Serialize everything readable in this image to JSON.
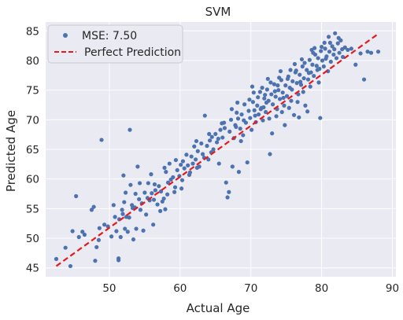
{
  "chart_data": {
    "type": "scatter",
    "title": "SVM",
    "xlabel": "Actual Age",
    "ylabel": "Predicted Age",
    "xlim": [
      41,
      90.5
    ],
    "ylim": [
      43.5,
      86.5
    ],
    "xticks": [
      50,
      60,
      70,
      80,
      90
    ],
    "yticks": [
      45,
      50,
      55,
      60,
      65,
      70,
      75,
      80,
      85
    ],
    "grid": true,
    "legend_position": "top-left",
    "colors": {
      "points": "#4c72b0",
      "line": "#e41a1c",
      "background": "#eaeaf2",
      "grid": "#ffffff"
    },
    "legend": [
      {
        "label": "MSE: 7.50",
        "marker": "dot"
      },
      {
        "label": "Perfect Prediction",
        "marker": "dashed-line"
      }
    ],
    "perfect_line": {
      "x": [
        42.5,
        88
      ],
      "y": [
        45.3,
        84.5
      ]
    },
    "points_note_count": 0,
    "points": [
      [
        42.5,
        46.5
      ],
      [
        43.8,
        48.4
      ],
      [
        44.5,
        45.3
      ],
      [
        44.8,
        51.2
      ],
      [
        45.3,
        57.1
      ],
      [
        45.7,
        50.2
      ],
      [
        46.2,
        51.1
      ],
      [
        46.5,
        50.6
      ],
      [
        47.5,
        54.8
      ],
      [
        47.8,
        55.3
      ],
      [
        48.0,
        46.2
      ],
      [
        48.2,
        48.5
      ],
      [
        48.5,
        49.7
      ],
      [
        48.6,
        51.7
      ],
      [
        48.9,
        66.6
      ],
      [
        49.3,
        52.3
      ],
      [
        49.8,
        52.0
      ],
      [
        50.3,
        50.3
      ],
      [
        50.6,
        55.6
      ],
      [
        51.0,
        51.2
      ],
      [
        51.3,
        46.6
      ],
      [
        51.3,
        46.3
      ],
      [
        51.4,
        53.2
      ],
      [
        51.6,
        50.2
      ],
      [
        51.8,
        54.8
      ],
      [
        52.0,
        60.6
      ],
      [
        52.1,
        56.1
      ],
      [
        52.3,
        57.7
      ],
      [
        52.4,
        53.6
      ],
      [
        52.6,
        51.1
      ],
      [
        52.8,
        53.5
      ],
      [
        53.0,
        59.0
      ],
      [
        52.9,
        68.3
      ],
      [
        53.2,
        55.6
      ],
      [
        53.4,
        49.8
      ],
      [
        53.6,
        55.2
      ],
      [
        53.8,
        51.6
      ],
      [
        54.0,
        62.1
      ],
      [
        54.2,
        56.6
      ],
      [
        54.3,
        59.3
      ],
      [
        54.6,
        55.9
      ],
      [
        54.8,
        51.3
      ],
      [
        55.0,
        57.7
      ],
      [
        55.2,
        54.0
      ],
      [
        55.5,
        59.3
      ],
      [
        55.7,
        56.4
      ],
      [
        56.0,
        57.6
      ],
      [
        56.2,
        52.3
      ],
      [
        56.3,
        56.5
      ],
      [
        56.5,
        58.1
      ],
      [
        56.8,
        55.7
      ],
      [
        57.0,
        58.8
      ],
      [
        57.2,
        54.6
      ],
      [
        57.5,
        56.2
      ],
      [
        57.7,
        56.7
      ],
      [
        57.9,
        54.9
      ],
      [
        58.0,
        61.2
      ],
      [
        58.3,
        59.4
      ],
      [
        58.5,
        62.6
      ],
      [
        58.7,
        59.9
      ],
      [
        59.0,
        60.3
      ],
      [
        59.2,
        57.8
      ],
      [
        59.4,
        63.2
      ],
      [
        59.6,
        61.5
      ],
      [
        59.9,
        60.5
      ],
      [
        60.2,
        58.4
      ],
      [
        60.4,
        63.0
      ],
      [
        60.6,
        61.8
      ],
      [
        60.9,
        64.1
      ],
      [
        61.1,
        62.3
      ],
      [
        61.3,
        60.7
      ],
      [
        61.6,
        63.8
      ],
      [
        61.8,
        62.6
      ],
      [
        62.0,
        65.5
      ],
      [
        62.2,
        63.3
      ],
      [
        62.5,
        64.7
      ],
      [
        62.7,
        62.1
      ],
      [
        63.0,
        66.0
      ],
      [
        63.2,
        64.2
      ],
      [
        63.5,
        70.7
      ],
      [
        63.8,
        65.6
      ],
      [
        64.0,
        63.3
      ],
      [
        64.2,
        66.5
      ],
      [
        64.5,
        67.1
      ],
      [
        64.7,
        65.0
      ],
      [
        65.0,
        67.6
      ],
      [
        65.2,
        66.2
      ],
      [
        65.5,
        62.6
      ],
      [
        65.7,
        68.3
      ],
      [
        66.0,
        67.0
      ],
      [
        66.2,
        69.5
      ],
      [
        66.5,
        59.4
      ],
      [
        66.7,
        56.9
      ],
      [
        66.9,
        57.8
      ],
      [
        67.0,
        68.0
      ],
      [
        67.2,
        70.0
      ],
      [
        67.4,
        62.1
      ],
      [
        67.6,
        66.9
      ],
      [
        67.8,
        69.1
      ],
      [
        68.0,
        71.2
      ],
      [
        68.2,
        70.2
      ],
      [
        68.3,
        61.2
      ],
      [
        68.5,
        68.5
      ],
      [
        68.7,
        70.9
      ],
      [
        68.9,
        67.4
      ],
      [
        69.1,
        72.6
      ],
      [
        69.3,
        69.5
      ],
      [
        69.5,
        62.8
      ],
      [
        69.7,
        71.5
      ],
      [
        69.9,
        70.3
      ],
      [
        70.1,
        68.3
      ],
      [
        70.3,
        73.0
      ],
      [
        70.5,
        71.6
      ],
      [
        70.7,
        69.6
      ],
      [
        70.9,
        72.4
      ],
      [
        71.1,
        70.9
      ],
      [
        71.3,
        74.7
      ],
      [
        71.5,
        72.0
      ],
      [
        71.7,
        69.9
      ],
      [
        71.9,
        73.6
      ],
      [
        72.1,
        71.3
      ],
      [
        72.3,
        75.1
      ],
      [
        72.5,
        73.2
      ],
      [
        72.7,
        64.2
      ],
      [
        72.9,
        74.3
      ],
      [
        73.1,
        72.6
      ],
      [
        73.3,
        76.0
      ],
      [
        73.5,
        73.9
      ],
      [
        73.7,
        71.8
      ],
      [
        73.9,
        75.0
      ],
      [
        74.1,
        73.5
      ],
      [
        74.3,
        76.7
      ],
      [
        74.5,
        74.6
      ],
      [
        74.7,
        72.4
      ],
      [
        74.9,
        75.8
      ],
      [
        75.1,
        74.0
      ],
      [
        75.3,
        77.3
      ],
      [
        75.5,
        75.4
      ],
      [
        75.7,
        73.2
      ],
      [
        75.9,
        76.5
      ],
      [
        76.1,
        70.8
      ],
      [
        76.3,
        78.0
      ],
      [
        76.5,
        76.2
      ],
      [
        76.7,
        74.3
      ],
      [
        76.9,
        77.6
      ],
      [
        77.1,
        75.9
      ],
      [
        77.3,
        79.0
      ],
      [
        77.5,
        77.0
      ],
      [
        77.7,
        72.4
      ],
      [
        77.9,
        78.4
      ],
      [
        78.1,
        76.8
      ],
      [
        78.3,
        80.1
      ],
      [
        78.5,
        78.0
      ],
      [
        78.7,
        79.3
      ],
      [
        78.9,
        77.4
      ],
      [
        79.1,
        81.0
      ],
      [
        79.3,
        79.1
      ],
      [
        79.5,
        80.4
      ],
      [
        79.7,
        78.6
      ],
      [
        79.9,
        81.6
      ],
      [
        80.1,
        80.0
      ],
      [
        80.3,
        79.0
      ],
      [
        80.5,
        82.0
      ],
      [
        80.7,
        80.7
      ],
      [
        80.9,
        78.2
      ],
      [
        81.1,
        81.5
      ],
      [
        81.3,
        79.8
      ],
      [
        81.5,
        82.4
      ],
      [
        81.7,
        81.0
      ],
      [
        81.9,
        84.6
      ],
      [
        82.1,
        80.4
      ],
      [
        82.3,
        82.9
      ],
      [
        82.5,
        81.3
      ],
      [
        82.7,
        83.4
      ],
      [
        83.0,
        80.6
      ],
      [
        83.3,
        82.2
      ],
      [
        83.7,
        81.8
      ],
      [
        84.2,
        82.0
      ],
      [
        84.8,
        79.3
      ],
      [
        85.5,
        81.2
      ],
      [
        86.0,
        76.8
      ],
      [
        86.5,
        81.5
      ],
      [
        87.0,
        81.3
      ],
      [
        88.0,
        81.5
      ],
      [
        70.4,
        74.6
      ],
      [
        71.0,
        73.8
      ],
      [
        71.6,
        75.4
      ],
      [
        72.2,
        72.9
      ],
      [
        72.8,
        76.3
      ],
      [
        73.4,
        74.8
      ],
      [
        74.0,
        77.1
      ],
      [
        74.6,
        73.7
      ],
      [
        75.2,
        76.9
      ],
      [
        75.8,
        75.1
      ],
      [
        76.4,
        78.3
      ],
      [
        77.0,
        76.4
      ],
      [
        77.6,
        79.6
      ],
      [
        78.2,
        77.9
      ],
      [
        78.8,
        81.3
      ],
      [
        79.4,
        78.4
      ],
      [
        80.0,
        82.3
      ],
      [
        80.6,
        80.3
      ],
      [
        81.2,
        83.0
      ],
      [
        81.8,
        81.9
      ],
      [
        82.4,
        83.8
      ],
      [
        69.8,
        73.4
      ],
      [
        70.6,
        70.7
      ],
      [
        71.8,
        72.1
      ],
      [
        72.6,
        70.2
      ],
      [
        73.6,
        70.6
      ],
      [
        74.4,
        71.3
      ],
      [
        75.4,
        72.0
      ],
      [
        76.6,
        73.0
      ],
      [
        77.4,
        74.7
      ],
      [
        78.4,
        75.6
      ],
      [
        79.6,
        76.3
      ],
      [
        67.3,
        71.8
      ],
      [
        66.3,
        68.6
      ],
      [
        65.4,
        66.8
      ],
      [
        64.4,
        64.5
      ],
      [
        63.4,
        63.6
      ],
      [
        62.4,
        61.9
      ],
      [
        61.4,
        61.1
      ],
      [
        60.3,
        59.8
      ],
      [
        59.3,
        58.6
      ],
      [
        58.2,
        57.4
      ],
      [
        57.3,
        57.9
      ],
      [
        56.4,
        59.1
      ],
      [
        55.4,
        56.8
      ],
      [
        54.4,
        54.8
      ],
      [
        53.3,
        55.1
      ],
      [
        52.2,
        51.6
      ],
      [
        50.8,
        53.6
      ],
      [
        51.9,
        54.1
      ],
      [
        53.7,
        57.5
      ],
      [
        55.9,
        60.8
      ],
      [
        57.8,
        61.9
      ],
      [
        60.1,
        62.4
      ],
      [
        62.3,
        66.4
      ],
      [
        64.1,
        67.6
      ],
      [
        65.9,
        69.4
      ],
      [
        68.1,
        72.9
      ],
      [
        70.2,
        75.6
      ],
      [
        72.4,
        76.9
      ],
      [
        74.2,
        78.2
      ],
      [
        76.2,
        79.4
      ],
      [
        78.6,
        81.8
      ],
      [
        80.4,
        83.0
      ],
      [
        73.0,
        67.7
      ],
      [
        74.8,
        69.1
      ],
      [
        76.8,
        70.4
      ],
      [
        78.0,
        71.4
      ],
      [
        79.8,
        70.3
      ],
      [
        68.6,
        66.4
      ],
      [
        67.9,
        68.8
      ],
      [
        69.0,
        69.9
      ],
      [
        71.4,
        71.8
      ],
      [
        72.0,
        74.2
      ],
      [
        73.8,
        75.8
      ],
      [
        75.6,
        78.4
      ],
      [
        77.2,
        80.2
      ],
      [
        79.0,
        82.1
      ],
      [
        81.0,
        84.0
      ],
      [
        82.9,
        81.9
      ]
    ]
  }
}
